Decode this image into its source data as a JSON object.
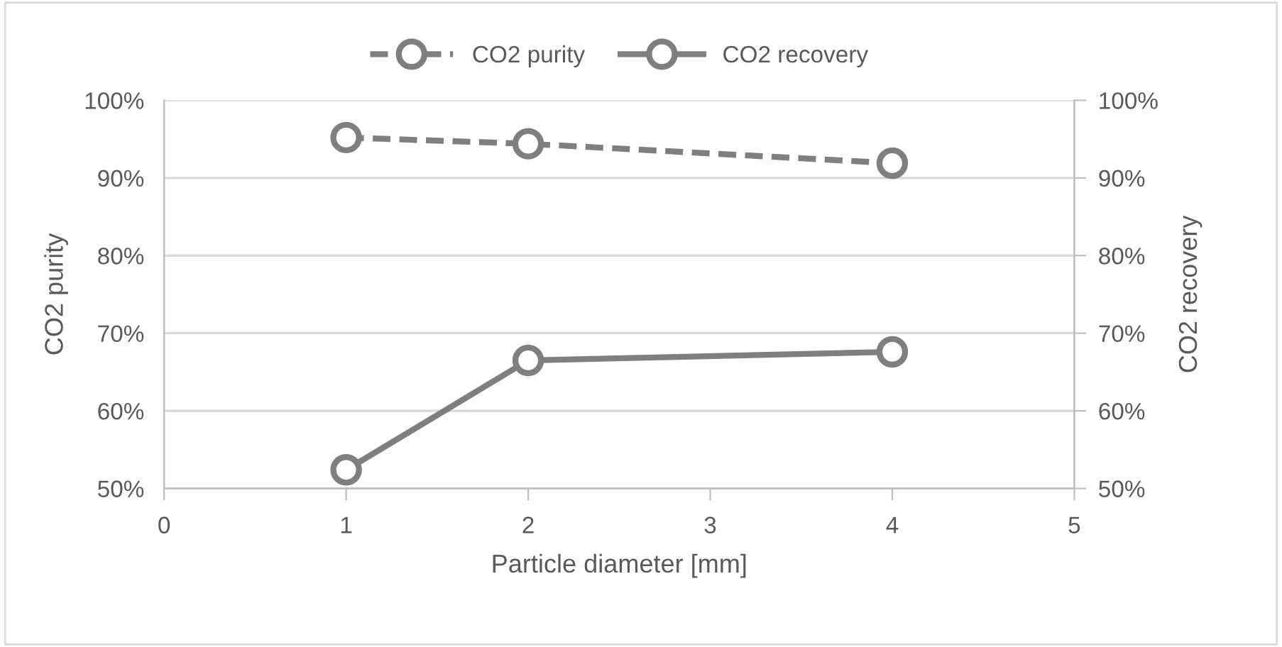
{
  "chart_data": {
    "type": "line",
    "xlabel": "Particle diameter [mm]",
    "ylabel": "CO2 purity",
    "y2label": "CO2 recovery",
    "x": [
      1,
      2,
      4
    ],
    "series": [
      {
        "name": "CO2 purity",
        "color": "#7f7f7f",
        "values": [
          95.2,
          94.4,
          91.9
        ],
        "line_style": "dashed"
      },
      {
        "name": "CO2 recovery",
        "color": "#7f7f7f",
        "values": [
          52.4,
          66.5,
          67.6
        ],
        "line_style": "solid"
      }
    ],
    "xlim": [
      0,
      5
    ],
    "xticks": [
      0,
      1,
      2,
      3,
      4,
      5
    ],
    "ylim": [
      50,
      100
    ],
    "yticks": [
      {
        "value": 50,
        "label": "50%"
      },
      {
        "value": 60,
        "label": "60%"
      },
      {
        "value": 70,
        "label": "70%"
      },
      {
        "value": 80,
        "label": "80%"
      },
      {
        "value": 90,
        "label": "90%"
      },
      {
        "value": 100,
        "label": "100%"
      }
    ],
    "y2lim": [
      50,
      100
    ],
    "y2ticks": [
      {
        "value": 50,
        "label": "50%"
      },
      {
        "value": 60,
        "label": "60%"
      },
      {
        "value": 70,
        "label": "70%"
      },
      {
        "value": 80,
        "label": "80%"
      },
      {
        "value": 90,
        "label": "90%"
      },
      {
        "value": 100,
        "label": "100%"
      }
    ],
    "grid": "y",
    "legend": "top",
    "marker": "circle"
  }
}
